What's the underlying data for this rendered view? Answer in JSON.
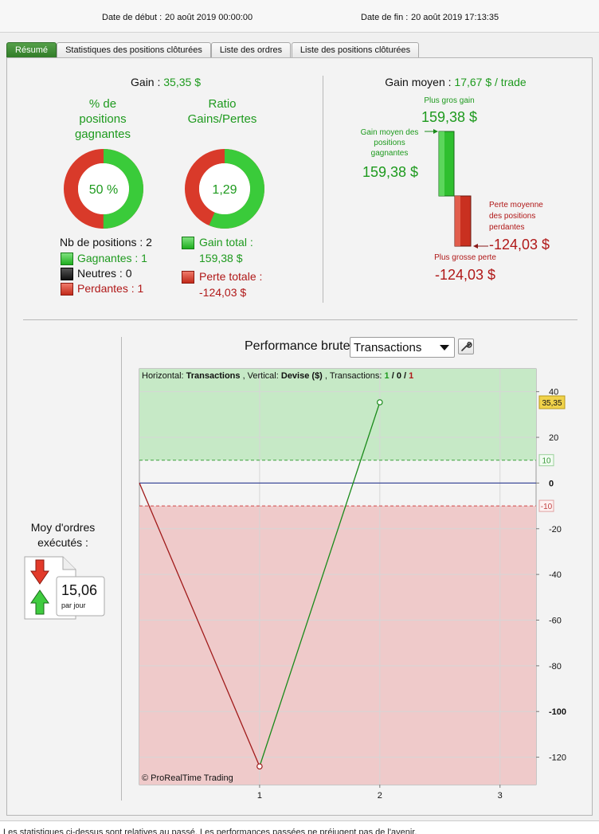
{
  "header": {
    "start_label": "Date de début :",
    "start_value": "20 août 2019 00:00:00",
    "end_label": "Date de fin :",
    "end_value": "20 août 2019 17:13:35"
  },
  "tabs": [
    {
      "label": "Résumé",
      "active": true
    },
    {
      "label": "Statistiques des positions clôturées",
      "active": false
    },
    {
      "label": "Liste des ordres",
      "active": false
    },
    {
      "label": "Liste des positions clôturées",
      "active": false
    }
  ],
  "summary": {
    "gain_label": "Gain :",
    "gain_value": "35,35 $",
    "winning_pct_title": [
      "% de",
      "positions",
      "gagnantes"
    ],
    "winning_pct_value": "50 %",
    "winning_fraction": 0.5,
    "ratio_title": [
      "Ratio",
      "Gains/Pertes"
    ],
    "ratio_value": "1,29",
    "ratio_fraction": 0.563,
    "positions_count": "Nb de positions : 2",
    "winning": "Gagnantes : 1",
    "neutral": "Neutres : 0",
    "losing": "Perdantes : 1",
    "gain_total_label": "Gain total :",
    "gain_total_value": "159,38 $",
    "loss_total_label": "Perte totale :",
    "loss_total_value": "-124,03 $"
  },
  "average": {
    "label": "Gain moyen :",
    "value": "17,67 $ / trade",
    "biggest_gain_label": "Plus gros gain",
    "biggest_gain_value": "159,38 $",
    "avg_win_label": [
      "Gain moyen des",
      "positions",
      "gagnantes"
    ],
    "avg_win_value": "159,38 $",
    "avg_loss_label": [
      "Perte moyenne",
      "des positions",
      "perdantes"
    ],
    "avg_loss_value": "-124,03 $",
    "biggest_loss_label": "Plus grosse perte",
    "biggest_loss_value": "-124,03 $"
  },
  "orders": {
    "label": [
      "Moy d'ordres",
      "exécutés :"
    ],
    "value": "15,06",
    "unit": "par jour"
  },
  "performance": {
    "title": "Performance brute",
    "selected": "Transactions",
    "copyright": "© ProRealTime Trading"
  },
  "chart_data": {
    "type": "line",
    "x": [
      0,
      1,
      2
    ],
    "y": [
      0,
      -124.03,
      35.35
    ],
    "xlim": [
      0,
      3.3
    ],
    "ylim": [
      -132,
      50
    ],
    "x_ticks": [
      "1",
      "2",
      "3"
    ],
    "y_ticks": [
      "40",
      "20",
      "0",
      "-20",
      "-40",
      "-60",
      "-80",
      "-100",
      "-120"
    ],
    "info": {
      "h_label": "Horizontal:",
      "h_value": "Transactions",
      "v_label": ", Vertical:",
      "v_value": "Devise ($)",
      "t_label": ", Transactions:",
      "t_win": "1",
      "t_sep1": " / ",
      "t_neutral": "0",
      "t_sep2": " / ",
      "t_loss": "1"
    },
    "bands": {
      "upper": 10,
      "lower": -10,
      "upper_label": "10",
      "lower_label": "-10"
    },
    "last_value_label": "35,35",
    "colors": {
      "gain": "#1a8a1a",
      "loss": "#a01a1a",
      "zero": "#1a2a8a",
      "gain_zone": "#c6e9c6",
      "loss_zone": "#efcaca"
    }
  },
  "footer": {
    "disclaimer": "Les statistiques ci-dessus sont relatives au passé. Les performances passées ne préjugent pas de l'avenir."
  }
}
